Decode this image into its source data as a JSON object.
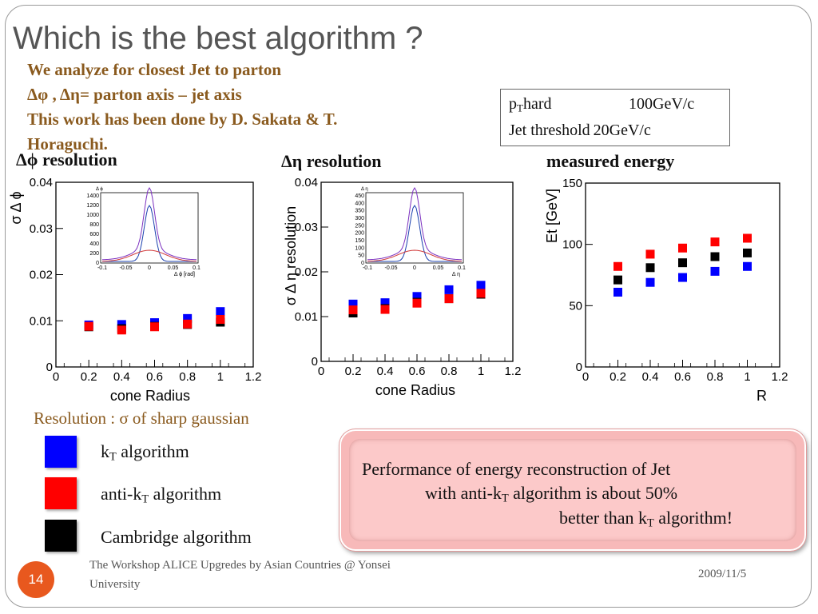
{
  "slide": {
    "title": "Which is the best algorithm ?",
    "intro_lines": [
      "We analyze for closest Jet to parton",
      "Δφ , Δη= parton axis – jet axis",
      "This work has been done by D. Sakata & T.",
      "Horaguchi."
    ],
    "info_box": [
      {
        "key_main": "p",
        "key_sub": "T",
        "key_rest": "hard",
        "value": "100GeV/c"
      },
      {
        "key_main": "Jet threshold",
        "key_sub": "",
        "key_rest": "",
        "value": "20GeV/c"
      }
    ],
    "resolution_note": "Resolution : σ of sharp gaussian",
    "legend": [
      {
        "pre": "k",
        "sub": "T",
        "post": " algorithm",
        "color": "#0000ff"
      },
      {
        "pre": "anti-k",
        "sub": "T",
        "post": " algorithm",
        "color": "#ff0000"
      },
      {
        "pre": "Cambridge algorithm",
        "sub": "",
        "post": "",
        "color": "#000000"
      }
    ],
    "callout": {
      "line1": "Performance of energy reconstruction of Jet",
      "line2_pre": "with anti-k",
      "line2_sub": "T",
      "line2_post": " algorithm is about 50%",
      "line3_pre": "better than k",
      "line3_sub": "T",
      "line3_post": " algorithm!"
    },
    "footer": "The Workshop ALICE Upgredes by Asian Countries @ Yonsei University",
    "date": "2009/11/5",
    "page_number": "14"
  },
  "chart_data": [
    {
      "type": "scatter",
      "title": "Δϕ resolution",
      "xlabel": "cone Radius",
      "ylabel": "σ Δ ϕ",
      "xlim": [
        0,
        1.2
      ],
      "ylim": [
        0,
        0.04
      ],
      "xticks": [
        "0",
        "0.2",
        "0.4",
        "0.6",
        "0.8",
        "1",
        "1.2"
      ],
      "yticks": [
        "0",
        "0.01",
        "0.02",
        "0.03",
        "0.04"
      ],
      "x": [
        0.2,
        0.4,
        0.6,
        0.8,
        1.0
      ],
      "series": [
        {
          "color": "#0000ff",
          "values": [
            0.0091,
            0.0092,
            0.0096,
            0.0105,
            0.012
          ]
        },
        {
          "color": "#000000",
          "values": [
            0.0087,
            0.0083,
            0.0088,
            0.0092,
            0.0097
          ]
        },
        {
          "color": "#ff0000",
          "values": [
            0.0088,
            0.008,
            0.0087,
            0.0093,
            0.0103
          ]
        }
      ],
      "inset": {
        "xlabel": "Δ ϕ [rad]",
        "ylabel": "Δ ϕ",
        "xticks": [
          "-0.1",
          "-0.05",
          "0",
          "0.05",
          "0.1"
        ],
        "yticks": [
          "0",
          "200",
          "400",
          "600",
          "800",
          "1000",
          "1200",
          "1400"
        ]
      }
    },
    {
      "type": "scatter",
      "title": "Δη resolution",
      "xlabel": "cone Radius",
      "ylabel": "σ Δ η resolution",
      "xlim": [
        0,
        1.2
      ],
      "ylim": [
        0,
        0.04
      ],
      "xticks": [
        "0",
        "0.2",
        "0.4",
        "0.6",
        "0.8",
        "1",
        "1.2"
      ],
      "yticks": [
        "0",
        "0.01",
        "0.02",
        "0.03",
        "0.04"
      ],
      "x": [
        0.2,
        0.4,
        0.6,
        0.8,
        1.0
      ],
      "series": [
        {
          "color": "#0000ff",
          "values": [
            0.0128,
            0.0131,
            0.0145,
            0.016,
            0.017
          ]
        },
        {
          "color": "#000000",
          "values": [
            0.0108,
            0.0118,
            0.0132,
            0.014,
            0.015
          ]
        },
        {
          "color": "#ff0000",
          "values": [
            0.0115,
            0.0116,
            0.013,
            0.014,
            0.0152
          ]
        }
      ],
      "inset": {
        "xlabel": "Δ η",
        "ylabel": "Δ η",
        "xticks": [
          "-0.1",
          "-0.05",
          "0",
          "0.05",
          "0.1"
        ],
        "yticks": [
          "0",
          "50",
          "100",
          "150",
          "200",
          "250",
          "300",
          "350",
          "400",
          "450"
        ]
      }
    },
    {
      "type": "scatter",
      "title": "measured energy",
      "xlabel": "R",
      "ylabel": "Et [GeV]",
      "xlim": [
        0,
        1.2
      ],
      "ylim": [
        0,
        150
      ],
      "xticks": [
        "0",
        "0.2",
        "0.4",
        "0.6",
        "0.8",
        "1",
        "1.2"
      ],
      "yticks": [
        "0",
        "50",
        "100",
        "150"
      ],
      "x": [
        0.2,
        0.4,
        0.6,
        0.8,
        1.0
      ],
      "series": [
        {
          "color": "#ff0000",
          "values": [
            82,
            92,
            97,
            102,
            105
          ]
        },
        {
          "color": "#000000",
          "values": [
            71,
            81,
            85,
            90,
            93
          ]
        },
        {
          "color": "#0000ff",
          "values": [
            61,
            69,
            73,
            78,
            82
          ]
        }
      ]
    }
  ]
}
